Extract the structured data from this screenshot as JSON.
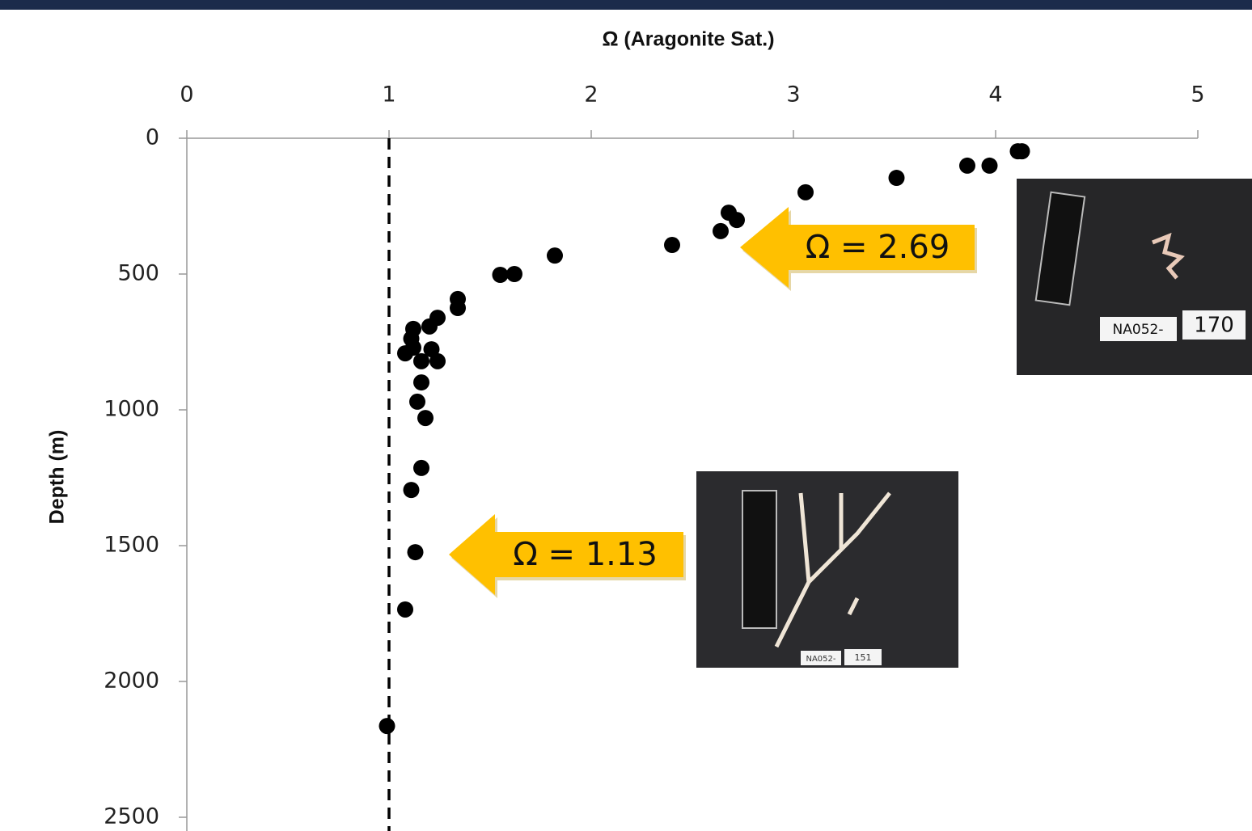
{
  "chart_data": {
    "type": "scatter",
    "x_label": "Ω (Aragonite Sat.)",
    "y_label": "Depth (m)",
    "xlim": [
      0,
      5
    ],
    "xticks": [
      0,
      1,
      2,
      3,
      4,
      5
    ],
    "ylim": [
      0,
      2500
    ],
    "yticks": [
      0,
      500,
      1000,
      1500,
      2000,
      2500
    ],
    "y_inverted": true,
    "reference_x": 1,
    "series": [
      {
        "color": "#000000",
        "x": [
          4.13,
          4.11,
          3.86,
          3.97,
          3.51,
          3.06,
          2.68,
          2.72,
          2.64,
          2.4,
          1.82,
          1.62,
          1.55,
          1.34,
          1.34,
          1.24,
          1.2,
          1.12,
          1.11,
          1.12,
          1.21,
          1.08,
          1.16,
          1.24,
          1.16,
          1.14,
          1.18,
          1.16,
          1.11,
          1.13,
          1.08,
          0.99
        ],
        "values": [
          48,
          48,
          101,
          101,
          146,
          199,
          274,
          301,
          342,
          393,
          432,
          500,
          503,
          592,
          625,
          661,
          693,
          702,
          738,
          771,
          777,
          792,
          821,
          821,
          899,
          970,
          1030,
          1214,
          1295,
          1524,
          1735,
          2164
        ]
      }
    ],
    "annotations": [
      {
        "text": "Ω = 2.69"
      },
      {
        "text": "Ω = 1.13"
      }
    ],
    "photo_labels": [
      [
        "NA052-",
        "170"
      ],
      [
        "NA052-",
        "151"
      ]
    ]
  }
}
